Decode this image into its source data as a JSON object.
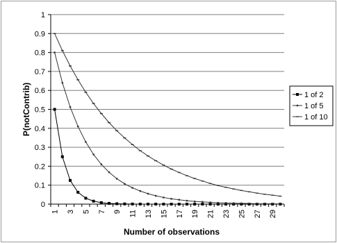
{
  "chart_data": {
    "type": "line",
    "title": "",
    "xlabel": "Number of observations",
    "ylabel": "P(notContrib)",
    "x": [
      1,
      2,
      3,
      4,
      5,
      6,
      7,
      8,
      9,
      10,
      11,
      12,
      13,
      14,
      15,
      16,
      17,
      18,
      19,
      20,
      21,
      22,
      23,
      24,
      25,
      26,
      27,
      28,
      29,
      30
    ],
    "x_tick_labels": [
      "1",
      "3",
      "5",
      "7",
      "9",
      "11",
      "13",
      "15",
      "17",
      "19",
      "21",
      "23",
      "25",
      "27",
      "29"
    ],
    "y_tick_labels": [
      "0",
      "0.1",
      "0.2",
      "0.3",
      "0.4",
      "0.5",
      "0.6",
      "0.7",
      "0.8",
      "0.9",
      "1"
    ],
    "ylim": [
      0,
      1
    ],
    "grid": "horizontal",
    "legend_position": "right",
    "series": [
      {
        "name": "1 of 2",
        "color": "#000000",
        "marker": "square-large",
        "values": [
          0.5,
          0.25,
          0.125,
          0.0625,
          0.0313,
          0.0156,
          0.0078,
          0.0039,
          0.002,
          0.001,
          0.0005,
          0.0002,
          0.0001,
          0.0001,
          0,
          0,
          0,
          0,
          0,
          0,
          0,
          0,
          0,
          0,
          0,
          0,
          0,
          0,
          0,
          0
        ]
      },
      {
        "name": "1 of 5",
        "color": "#333333",
        "marker": "square-small",
        "values": [
          0.8,
          0.64,
          0.512,
          0.41,
          0.328,
          0.262,
          0.21,
          0.168,
          0.134,
          0.107,
          0.086,
          0.069,
          0.055,
          0.044,
          0.035,
          0.028,
          0.023,
          0.018,
          0.014,
          0.012,
          0.009,
          0.007,
          0.006,
          0.005,
          0.004,
          0.003,
          0.002,
          0.002,
          0.002,
          0.001
        ]
      },
      {
        "name": "1 of 10",
        "color": "#333333",
        "marker": "dash",
        "values": [
          0.9,
          0.81,
          0.729,
          0.656,
          0.59,
          0.531,
          0.478,
          0.43,
          0.387,
          0.349,
          0.314,
          0.282,
          0.254,
          0.229,
          0.206,
          0.185,
          0.167,
          0.15,
          0.135,
          0.122,
          0.109,
          0.098,
          0.089,
          0.08,
          0.072,
          0.065,
          0.058,
          0.052,
          0.047,
          0.042
        ]
      }
    ]
  }
}
